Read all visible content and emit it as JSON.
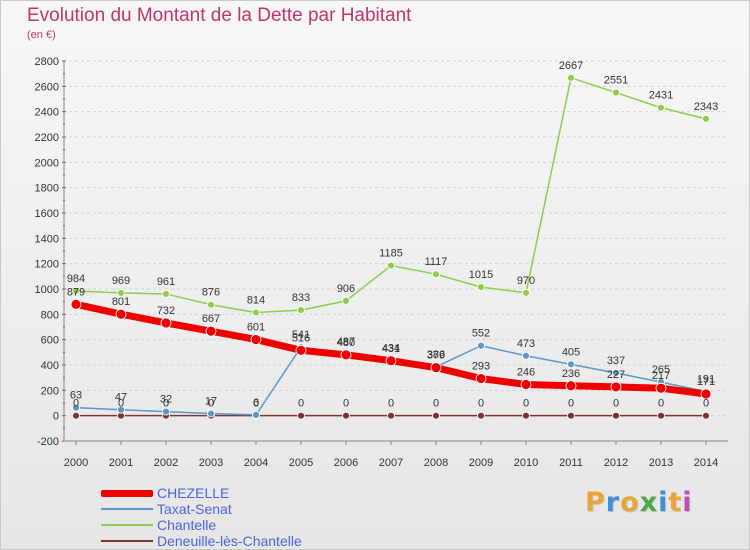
{
  "header": {
    "title": "Evolution du Montant de la Dette par Habitant",
    "subtitle": "(en €)"
  },
  "logo": {
    "letters": [
      "P",
      "r",
      "o",
      "x",
      "i",
      "t",
      "i"
    ],
    "colors": [
      "#e8a63a",
      "#3d8fd6",
      "#e8a63a",
      "#4aa84a",
      "#3d8fd6",
      "#e8a63a",
      "#c04cbb"
    ]
  },
  "chart_data": {
    "type": "line",
    "title": "Evolution du Montant de la Dette par Habitant",
    "subtitle": "(en €)",
    "x": [
      "2000",
      "2001",
      "2002",
      "2003",
      "2004",
      "2005",
      "2006",
      "2007",
      "2008",
      "2009",
      "2010",
      "2011",
      "2012",
      "2013",
      "2014"
    ],
    "ylim": [
      -200,
      2800
    ],
    "yticks": [
      -200,
      0,
      200,
      400,
      600,
      800,
      1000,
      1200,
      1400,
      1600,
      1800,
      2000,
      2200,
      2400,
      2600,
      2800
    ],
    "grid": "horizontal dashed",
    "legend_position": "bottom-left",
    "series": [
      {
        "name": "CHEZELLE",
        "color": "#ee0000",
        "values": [
          879,
          801,
          732,
          667,
          601,
          516,
          480,
          434,
          379,
          293,
          246,
          236,
          227,
          217,
          171
        ]
      },
      {
        "name": "Taxat-Senat",
        "color": "#5e97c7",
        "values": [
          63,
          47,
          32,
          17,
          6,
          541,
          487,
          431,
          386,
          552,
          473,
          405,
          337,
          265,
          191
        ]
      },
      {
        "name": "Chantelle",
        "color": "#8fcc4c",
        "values": [
          984,
          969,
          961,
          876,
          814,
          833,
          906,
          1185,
          1117,
          1015,
          970,
          2667,
          2551,
          2431,
          2343
        ]
      },
      {
        "name": "Deneuille-lès-Chantelle",
        "color": "#7a3434",
        "values": [
          0,
          0,
          0,
          0,
          0,
          0,
          0,
          0,
          0,
          0,
          0,
          0,
          0,
          0,
          0
        ]
      }
    ]
  }
}
